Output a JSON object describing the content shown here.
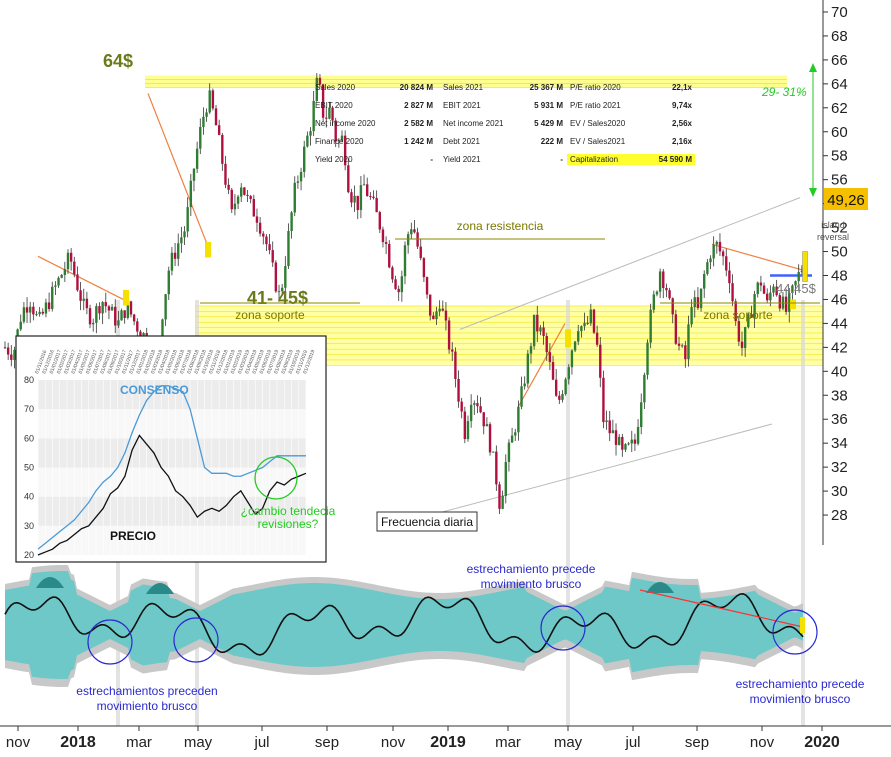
{
  "chart_data": [
    {
      "type": "line",
      "subtype": "candlestick-price",
      "ylim": [
        25.5,
        71
      ],
      "yticks": [
        28,
        30,
        32,
        34,
        36,
        38,
        40,
        42,
        44,
        46,
        48,
        50,
        52,
        54,
        56,
        58,
        60,
        62,
        64,
        66,
        68,
        70
      ],
      "xticks": [
        {
          "label": "nov",
          "year": false
        },
        {
          "label": "2018",
          "year": true
        },
        {
          "label": "mar",
          "year": false
        },
        {
          "label": "may",
          "year": false
        },
        {
          "label": "jul",
          "year": false
        },
        {
          "label": "sep",
          "year": false
        },
        {
          "label": "nov",
          "year": false
        },
        {
          "label": "2019",
          "year": true
        },
        {
          "label": "mar",
          "year": false
        },
        {
          "label": "may",
          "year": false
        },
        {
          "label": "jul",
          "year": false
        },
        {
          "label": "sep",
          "year": false
        },
        {
          "label": "nov",
          "year": false
        },
        {
          "label": "2020",
          "year": true
        }
      ],
      "last_price_label": "49,26",
      "price_path": [
        [
          0,
          42
        ],
        [
          4,
          41.5
        ],
        [
          8,
          45
        ],
        [
          12,
          46
        ],
        [
          16,
          44
        ],
        [
          20,
          45.5
        ],
        [
          24,
          47
        ],
        [
          28,
          48.5
        ],
        [
          31,
          49.5
        ],
        [
          34,
          47.5
        ],
        [
          38,
          45
        ],
        [
          42,
          44.5
        ],
        [
          46,
          46
        ],
        [
          50,
          45
        ],
        [
          54,
          44
        ],
        [
          58,
          45.5
        ],
        [
          62,
          44
        ],
        [
          66,
          43
        ],
        [
          70,
          42
        ],
        [
          72,
          41
        ],
        [
          75,
          45
        ],
        [
          78,
          48.5
        ],
        [
          82,
          50.5
        ],
        [
          86,
          52
        ],
        [
          90,
          57
        ],
        [
          94,
          61
        ],
        [
          97,
          63
        ],
        [
          100,
          61
        ],
        [
          104,
          57
        ],
        [
          108,
          53
        ],
        [
          112,
          56
        ],
        [
          116,
          54
        ],
        [
          120,
          53
        ],
        [
          124,
          51
        ],
        [
          128,
          48
        ],
        [
          131,
          46
        ],
        [
          134,
          50
        ],
        [
          138,
          55
        ],
        [
          142,
          58
        ],
        [
          146,
          61
        ],
        [
          149,
          64.5
        ],
        [
          152,
          61
        ],
        [
          155,
          62
        ],
        [
          158,
          59
        ],
        [
          161,
          59.5
        ],
        [
          164,
          55
        ],
        [
          168,
          54
        ],
        [
          171,
          55.5
        ],
        [
          175,
          54
        ],
        [
          178,
          52.5
        ],
        [
          181,
          51
        ],
        [
          184,
          48.5
        ],
        [
          188,
          46.5
        ],
        [
          191,
          51
        ],
        [
          194,
          52.5
        ],
        [
          197,
          50
        ],
        [
          201,
          46
        ],
        [
          204,
          44
        ],
        [
          207,
          46
        ],
        [
          210,
          43.5
        ],
        [
          213,
          41
        ],
        [
          216,
          38
        ],
        [
          219,
          35
        ],
        [
          222,
          38
        ],
        [
          225,
          37.5
        ],
        [
          228,
          36
        ],
        [
          231,
          34
        ],
        [
          234,
          31
        ],
        [
          236,
          28.5
        ],
        [
          238,
          32
        ],
        [
          241,
          34
        ],
        [
          245,
          37
        ],
        [
          249,
          41
        ],
        [
          252,
          44
        ],
        [
          256,
          43
        ],
        [
          260,
          40
        ],
        [
          263,
          37
        ],
        [
          266,
          39
        ],
        [
          270,
          42
        ],
        [
          273,
          44
        ],
        [
          276,
          43.5
        ],
        [
          279,
          44.5
        ],
        [
          282,
          42
        ],
        [
          285,
          36
        ],
        [
          288,
          35
        ],
        [
          291,
          34.5
        ],
        [
          294,
          33
        ],
        [
          297,
          33.5
        ],
        [
          300,
          34
        ],
        [
          303,
          38
        ],
        [
          306,
          43
        ],
        [
          309,
          46
        ],
        [
          312,
          48.5
        ],
        [
          315,
          47
        ],
        [
          318,
          44
        ],
        [
          321,
          42
        ],
        [
          324,
          41
        ],
        [
          327,
          46
        ],
        [
          330,
          45
        ],
        [
          333,
          48
        ],
        [
          336,
          50
        ],
        [
          339,
          50.5
        ],
        [
          342,
          49.5
        ],
        [
          345,
          48
        ],
        [
          348,
          44
        ],
        [
          351,
          42
        ],
        [
          354,
          44
        ],
        [
          357,
          46.5
        ],
        [
          360,
          47.5
        ],
        [
          363,
          45.5
        ],
        [
          366,
          47.5
        ],
        [
          369,
          46
        ],
        [
          372,
          45
        ],
        [
          375,
          46.5
        ],
        [
          378,
          48
        ],
        [
          381,
          49.26
        ]
      ],
      "bands": [
        {
          "label": "64$",
          "y_from": 63.7,
          "y_to": 64.7
        },
        {
          "label": "41- 45$",
          "y_from": 40.5,
          "y_to": 45.5
        }
      ],
      "annotations": {
        "target_pct": "29- 31%",
        "zona_resistencia": "zona resistencia",
        "zona_soporte_left": "zona soporte",
        "zona_soporte_right": "zona soporte",
        "island_reversal": "island reversal",
        "support_price": "44,45$",
        "frecuencia": "Frecuencia diaria"
      }
    },
    {
      "type": "table",
      "rows": [
        [
          "Sales 2020",
          "20 824 M",
          "Sales 2021",
          "25 367 M",
          "P/E ratio 2020",
          "22,1x"
        ],
        [
          "EBIT 2020",
          "2 827 M",
          "EBIT 2021",
          "5 931 M",
          "P/E ratio 2021",
          "9,74x"
        ],
        [
          "Net income 2020",
          "2 582 M",
          "Net income 2021",
          "5 429 M",
          "EV / Sales2020",
          "2,56x"
        ],
        [
          "Finance 2020",
          "1 242 M",
          "Debt 2021",
          "222 M",
          "EV / Sales2021",
          "2,16x"
        ],
        [
          "Yield 2020",
          "-",
          "Yield 2021",
          "-",
          "Capitalization",
          "54 590 M"
        ]
      ]
    },
    {
      "type": "line",
      "subtype": "inset-consensus-vs-price",
      "ylim": [
        20,
        80
      ],
      "yticks": [
        20,
        30,
        40,
        50,
        60,
        70,
        80
      ],
      "date_labels": [
        "01/11/2016",
        "01/12/2016",
        "01/01/2017",
        "01/02/2017",
        "01/03/2017",
        "01/04/2017",
        "01/05/2017",
        "01/06/2017",
        "01/07/2017",
        "01/08/2017",
        "01/09/2017",
        "01/10/2017",
        "01/11/2017",
        "01/12/2017",
        "01/01/2018",
        "01/02/2018",
        "01/03/2018",
        "01/04/2018",
        "01/05/2018",
        "01/06/2018",
        "01/07/2018",
        "01/08/2018",
        "01/09/2018",
        "01/10/2018",
        "01/11/2018",
        "01/12/2018",
        "01/01/2019",
        "01/02/2019",
        "01/03/2019",
        "01/04/2019",
        "01/05/2019",
        "01/06/2019",
        "01/07/2019",
        "01/08/2019",
        "01/09/2019",
        "01/10/2019",
        "01/11/2019",
        "01/12/2019"
      ],
      "series": [
        {
          "name": "CONSENSO",
          "values": [
            22,
            24,
            26,
            28,
            30,
            32,
            35,
            38,
            42,
            45,
            47,
            50,
            55,
            62,
            68,
            73,
            76,
            78,
            78,
            77,
            76,
            70,
            60,
            50,
            48,
            48,
            48,
            47,
            47,
            48,
            49,
            50,
            52,
            54,
            54,
            54,
            54,
            54
          ]
        },
        {
          "name": "PRECIO",
          "values": [
            20,
            21,
            22,
            24,
            25,
            27,
            29,
            30,
            33,
            36,
            41,
            43,
            47,
            56,
            61,
            58,
            55,
            50,
            47,
            42,
            40,
            37,
            33,
            35,
            36,
            35,
            37,
            40,
            42,
            38,
            34,
            36,
            42,
            45,
            44,
            46,
            47,
            48
          ]
        }
      ],
      "annotation": "¿cambio tendecia revisiones?"
    },
    {
      "type": "area",
      "subtype": "bollinger-oscillator",
      "annotations": {
        "left": "estrechamientos preceden movimiento brusco",
        "mid": "estrechamiento precede movimiento brusco",
        "right": "estrechamiento precede movimiento brusco"
      }
    }
  ]
}
